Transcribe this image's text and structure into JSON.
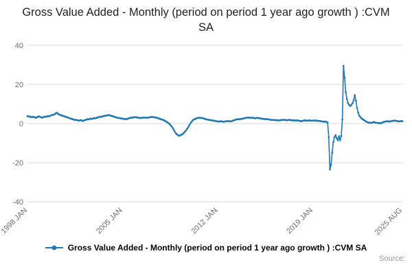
{
  "footer": {
    "source_label": "Source:"
  },
  "colors": {
    "series": "#1f78b4",
    "grid": "#d9d9d9",
    "axis_text": "#6e6e6e"
  },
  "chart_data": {
    "type": "line",
    "title": "Gross Value Added - Monthly (period on period 1 year ago growth ) :CVM SA",
    "xlabel": "",
    "ylabel": "",
    "ylim": [
      -40,
      40
    ],
    "yticks": [
      -40,
      -20,
      0,
      20,
      40
    ],
    "grid": "horizontal",
    "legend_position": "bottom",
    "x_start": "1998 JAN",
    "x_end": "2025 AUG",
    "x_frequency": "monthly",
    "x_ticks": [
      {
        "label": "1998 JAN",
        "index": 0
      },
      {
        "label": "2005 JAN",
        "index": 84
      },
      {
        "label": "2012 JAN",
        "index": 168
      },
      {
        "label": "2019 JAN",
        "index": 252
      },
      {
        "label": "2025 AUG",
        "index": 331
      }
    ],
    "series": [
      {
        "name": "Gross Value Added - Monthly (period on period 1 year ago growth ) :CVM SA",
        "color": "#1f78b4",
        "marker": "circle",
        "values": [
          3.8,
          3.5,
          3.6,
          3.4,
          3.2,
          3.5,
          3.3,
          3.0,
          3.1,
          3.4,
          3.6,
          3.5,
          3.2,
          3.0,
          3.3,
          3.5,
          3.4,
          3.6,
          3.8,
          3.7,
          3.9,
          4.2,
          4.4,
          4.5,
          4.8,
          5.2,
          5.5,
          5.0,
          4.6,
          4.4,
          4.2,
          4.0,
          3.8,
          3.6,
          3.4,
          3.2,
          3.0,
          2.8,
          2.6,
          2.4,
          2.2,
          2.0,
          1.8,
          1.9,
          1.7,
          1.5,
          1.6,
          1.8,
          1.5,
          1.3,
          1.6,
          1.8,
          2.0,
          2.2,
          2.1,
          2.3,
          2.5,
          2.4,
          2.6,
          2.8,
          2.7,
          2.9,
          3.1,
          3.3,
          3.5,
          3.4,
          3.6,
          3.8,
          3.9,
          4.0,
          4.1,
          4.2,
          4.3,
          4.1,
          3.9,
          3.8,
          3.6,
          3.4,
          3.2,
          3.0,
          2.9,
          2.8,
          2.7,
          2.6,
          2.5,
          2.4,
          2.3,
          2.2,
          2.4,
          2.6,
          2.8,
          2.9,
          3.0,
          3.1,
          3.2,
          3.3,
          3.2,
          3.1,
          3.0,
          2.9,
          2.8,
          2.9,
          3.0,
          3.1,
          3.0,
          2.9,
          3.0,
          3.1,
          3.2,
          3.3,
          3.4,
          3.3,
          3.2,
          3.1,
          3.0,
          2.8,
          2.6,
          2.4,
          2.2,
          2.0,
          1.8,
          1.5,
          1.2,
          0.8,
          0.4,
          0.0,
          -0.6,
          -1.3,
          -2.1,
          -3.0,
          -4.0,
          -5.0,
          -5.5,
          -6.0,
          -6.2,
          -6.0,
          -5.7,
          -5.3,
          -4.8,
          -4.2,
          -3.5,
          -2.7,
          -1.8,
          -0.8,
          0.2,
          1.0,
          1.6,
          2.1,
          2.4,
          2.6,
          2.8,
          2.9,
          3.0,
          2.9,
          2.8,
          2.7,
          2.5,
          2.3,
          2.1,
          2.0,
          1.9,
          1.8,
          1.7,
          1.6,
          1.5,
          1.4,
          1.3,
          1.2,
          1.1,
          1.0,
          1.1,
          1.2,
          1.0,
          0.9,
          1.0,
          1.1,
          1.2,
          1.3,
          1.2,
          1.1,
          1.2,
          1.4,
          1.6,
          1.8,
          2.0,
          2.2,
          2.1,
          2.2,
          2.3,
          2.4,
          2.5,
          2.6,
          2.8,
          2.9,
          3.0,
          3.1,
          3.0,
          2.9,
          3.0,
          2.9,
          2.8,
          2.7,
          2.8,
          2.9,
          2.8,
          2.7,
          2.6,
          2.5,
          2.4,
          2.3,
          2.2,
          2.3,
          2.2,
          2.1,
          2.0,
          1.9,
          1.8,
          1.9,
          1.8,
          1.7,
          1.8,
          1.7,
          1.6,
          1.7,
          1.8,
          1.9,
          1.8,
          1.9,
          1.8,
          1.7,
          1.8,
          1.9,
          1.8,
          1.7,
          1.6,
          1.7,
          1.6,
          1.5,
          1.6,
          1.5,
          1.4,
          1.3,
          1.2,
          1.4,
          1.5,
          1.6,
          1.5,
          1.4,
          1.5,
          1.6,
          1.5,
          1.4,
          1.5,
          1.4,
          1.6,
          1.5,
          1.3,
          1.4,
          1.3,
          1.2,
          1.1,
          1.0,
          0.9,
          1.0,
          0.8,
          0.5,
          -7.0,
          -23.5,
          -21.0,
          -15.0,
          -9.5,
          -7.0,
          -6.0,
          -7.5,
          -8.5,
          -6.5,
          -8.5,
          -6.5,
          2.0,
          29.5,
          23.5,
          16.0,
          12.5,
          10.5,
          9.5,
          9.0,
          9.5,
          10.5,
          12.0,
          14.5,
          11.5,
          8.0,
          5.5,
          4.0,
          3.2,
          2.6,
          2.2,
          1.8,
          1.4,
          1.0,
          0.7,
          0.5,
          0.4,
          0.5,
          0.3,
          0.6,
          0.8,
          0.5,
          0.4,
          0.3,
          0.2,
          0.2,
          0.1,
          0.4,
          0.7,
          0.9,
          1.0,
          1.1,
          1.2,
          1.0,
          1.1,
          1.2,
          1.3,
          1.4,
          1.5,
          1.4,
          1.3,
          1.2,
          1.1,
          1.2,
          1.3,
          1.2
        ]
      }
    ]
  }
}
